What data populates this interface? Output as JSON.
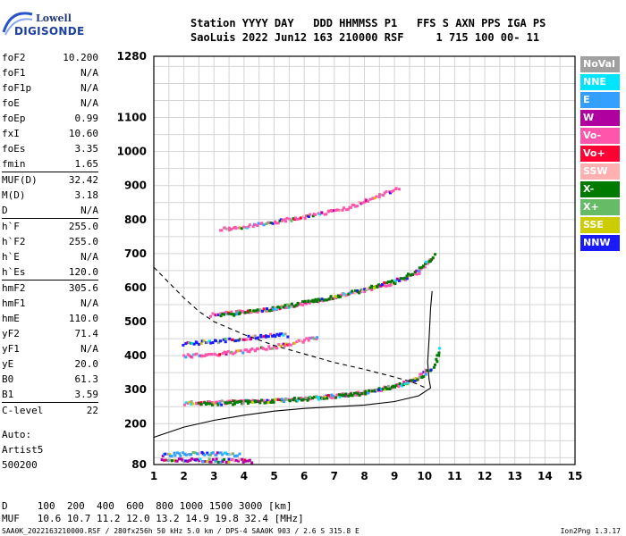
{
  "logo": {
    "line1": "Lowell",
    "line2": "DIGISONDE"
  },
  "header": {
    "line1": "Station YYYY DAY   DDD HHMMSS P1   FFS S AXN PPS IGA PS",
    "line2": "SaoLuis 2022 Jun12 163 210000 RSF     1 715 100 00- 11"
  },
  "parameters": [
    {
      "name": "foF2",
      "value": "10.200"
    },
    {
      "name": "foF1",
      "value": "N/A"
    },
    {
      "name": "foF1p",
      "value": "N/A"
    },
    {
      "name": "foE",
      "value": "N/A"
    },
    {
      "name": "foEp",
      "value": "0.99"
    },
    {
      "name": "fxI",
      "value": "10.60"
    },
    {
      "name": "foEs",
      "value": "3.35"
    },
    {
      "name": "fmin",
      "value": "1.65"
    },
    {
      "name": "MUF(D)",
      "value": "32.42"
    },
    {
      "name": "M(D)",
      "value": "3.18"
    },
    {
      "name": "D",
      "value": "N/A"
    },
    {
      "name": "h`F",
      "value": "255.0"
    },
    {
      "name": "h`F2",
      "value": "255.0"
    },
    {
      "name": "h`E",
      "value": "N/A"
    },
    {
      "name": "h`Es",
      "value": "120.0"
    },
    {
      "name": "hmF2",
      "value": "305.6"
    },
    {
      "name": "hmF1",
      "value": "N/A"
    },
    {
      "name": "hmE",
      "value": "110.0"
    },
    {
      "name": "yF2",
      "value": "71.4"
    },
    {
      "name": "yF1",
      "value": "N/A"
    },
    {
      "name": "yE",
      "value": "20.0"
    },
    {
      "name": "B0",
      "value": "61.3"
    },
    {
      "name": "B1",
      "value": "3.59"
    },
    {
      "name": "C-level",
      "value": "22"
    }
  ],
  "auto": {
    "line1": "Auto:",
    "line2": "Artist5",
    "line3": "500200"
  },
  "legend": [
    {
      "label": "NoVal",
      "color": "#a0a0a0"
    },
    {
      "label": "NNE",
      "color": "#00e5ff"
    },
    {
      "label": "E",
      "color": "#33a0ff"
    },
    {
      "label": "W",
      "color": "#b000a0"
    },
    {
      "label": "Vo-",
      "color": "#ff55aa"
    },
    {
      "label": "Vo+",
      "color": "#ff0033"
    },
    {
      "label": "SSW",
      "color": "#ffb0b0"
    },
    {
      "label": "X-",
      "color": "#007a00"
    },
    {
      "label": "X+",
      "color": "#66bb66"
    },
    {
      "label": "SSE",
      "color": "#cccc00"
    },
    {
      "label": "NNW",
      "color": "#1a1aff"
    }
  ],
  "footer": {
    "line1": "D     100  200  400  600  800 1000 1500 3000 [km]",
    "line2": "MUF   10.6 10.7 11.2 12.0 13.2 14.9 19.8 32.4 [MHz]",
    "line3": "SAA0K_2022163210000.RSF / 280fx256h 50 kHz 5.0 km / DPS-4 SAA0K 903 / 2.6 S 315.8 E",
    "line3_right": "Ion2Png 1.3.17"
  },
  "chart_data": {
    "type": "scatter",
    "title": "",
    "xlabel": "",
    "ylabel": "",
    "xlim": [
      1,
      15
    ],
    "ylim": [
      80,
      1280
    ],
    "x_ticks": [
      1,
      2,
      3,
      4,
      5,
      6,
      7,
      8,
      9,
      10,
      11,
      12,
      13,
      14,
      15
    ],
    "y_ticks": [
      80,
      200,
      300,
      400,
      500,
      600,
      700,
      800,
      900,
      1000,
      1100,
      1280
    ],
    "grid": true,
    "traces": [
      {
        "name": "Es trace",
        "color": "#b000a0",
        "points": [
          [
            1.3,
            90
          ],
          [
            1.8,
            92
          ],
          [
            2.5,
            93
          ],
          [
            3.2,
            92
          ],
          [
            3.8,
            91
          ],
          [
            4.3,
            90
          ]
        ]
      },
      {
        "name": "Es trace 2",
        "color": "#33a0ff",
        "points": [
          [
            1.3,
            108
          ],
          [
            2.0,
            110
          ],
          [
            2.7,
            112
          ],
          [
            3.3,
            110
          ],
          [
            3.9,
            108
          ]
        ]
      },
      {
        "name": "F trace (O)",
        "color": "#ff55aa",
        "points": [
          [
            2.0,
            260
          ],
          [
            3.0,
            262
          ],
          [
            4.0,
            265
          ],
          [
            5.0,
            268
          ],
          [
            6.0,
            272
          ],
          [
            7.0,
            280
          ],
          [
            8.0,
            292
          ],
          [
            9.0,
            310
          ],
          [
            9.8,
            335
          ],
          [
            10.1,
            365
          ]
        ]
      },
      {
        "name": "F trace (X)",
        "color": "#007a00",
        "points": [
          [
            2.5,
            258
          ],
          [
            4.0,
            262
          ],
          [
            6.0,
            272
          ],
          [
            8.0,
            290
          ],
          [
            9.4,
            318
          ],
          [
            10.0,
            340
          ],
          [
            10.4,
            380
          ],
          [
            10.5,
            430
          ]
        ]
      },
      {
        "name": "2F trace",
        "color": "#ff55aa",
        "points": [
          [
            2.9,
            520
          ],
          [
            4.0,
            528
          ],
          [
            5.0,
            537
          ],
          [
            6.0,
            552
          ],
          [
            7.0,
            570
          ],
          [
            8.0,
            592
          ],
          [
            9.0,
            615
          ],
          [
            9.8,
            642
          ],
          [
            10.3,
            690
          ]
        ]
      },
      {
        "name": "2F trace X",
        "color": "#007a00",
        "points": [
          [
            3.2,
            518
          ],
          [
            5.0,
            538
          ],
          [
            7.0,
            572
          ],
          [
            9.0,
            618
          ],
          [
            9.8,
            650
          ],
          [
            10.4,
            700
          ]
        ]
      },
      {
        "name": "3F trace",
        "color": "#ff55aa",
        "points": [
          [
            3.2,
            770
          ],
          [
            4.5,
            785
          ],
          [
            5.5,
            800
          ],
          [
            6.5,
            815
          ],
          [
            7.5,
            835
          ],
          [
            8.2,
            860
          ],
          [
            9.2,
            895
          ]
        ]
      },
      {
        "name": "Es mid",
        "color": "#1a1aff",
        "points": [
          [
            2.0,
            435
          ],
          [
            2.9,
            440
          ],
          [
            3.7,
            448
          ],
          [
            4.7,
            458
          ],
          [
            5.5,
            460
          ]
        ]
      },
      {
        "name": "Es mid 2",
        "color": "#ff55aa",
        "points": [
          [
            2.0,
            398
          ],
          [
            3.0,
            403
          ],
          [
            4.0,
            412
          ],
          [
            5.0,
            425
          ],
          [
            5.8,
            440
          ],
          [
            6.5,
            455
          ]
        ]
      }
    ],
    "profile_solid": [
      [
        1.0,
        160
      ],
      [
        2.0,
        190
      ],
      [
        3.0,
        210
      ],
      [
        4.0,
        225
      ],
      [
        5.0,
        237
      ],
      [
        6.0,
        245
      ],
      [
        7.0,
        250
      ],
      [
        8.0,
        255
      ],
      [
        9.0,
        265
      ],
      [
        9.8,
        282
      ],
      [
        10.2,
        305
      ],
      [
        10.15,
        330
      ],
      [
        10.1,
        380
      ],
      [
        10.15,
        450
      ],
      [
        10.2,
        540
      ],
      [
        10.25,
        590
      ]
    ],
    "profile_dashed": [
      [
        1.0,
        660
      ],
      [
        1.5,
        615
      ],
      [
        2.0,
        570
      ],
      [
        2.5,
        530
      ],
      [
        3.0,
        500
      ],
      [
        4.0,
        462
      ],
      [
        5.0,
        430
      ],
      [
        6.0,
        405
      ],
      [
        7.0,
        380
      ],
      [
        8.0,
        360
      ],
      [
        9.0,
        337
      ],
      [
        9.6,
        322
      ],
      [
        10.05,
        305
      ]
    ]
  }
}
